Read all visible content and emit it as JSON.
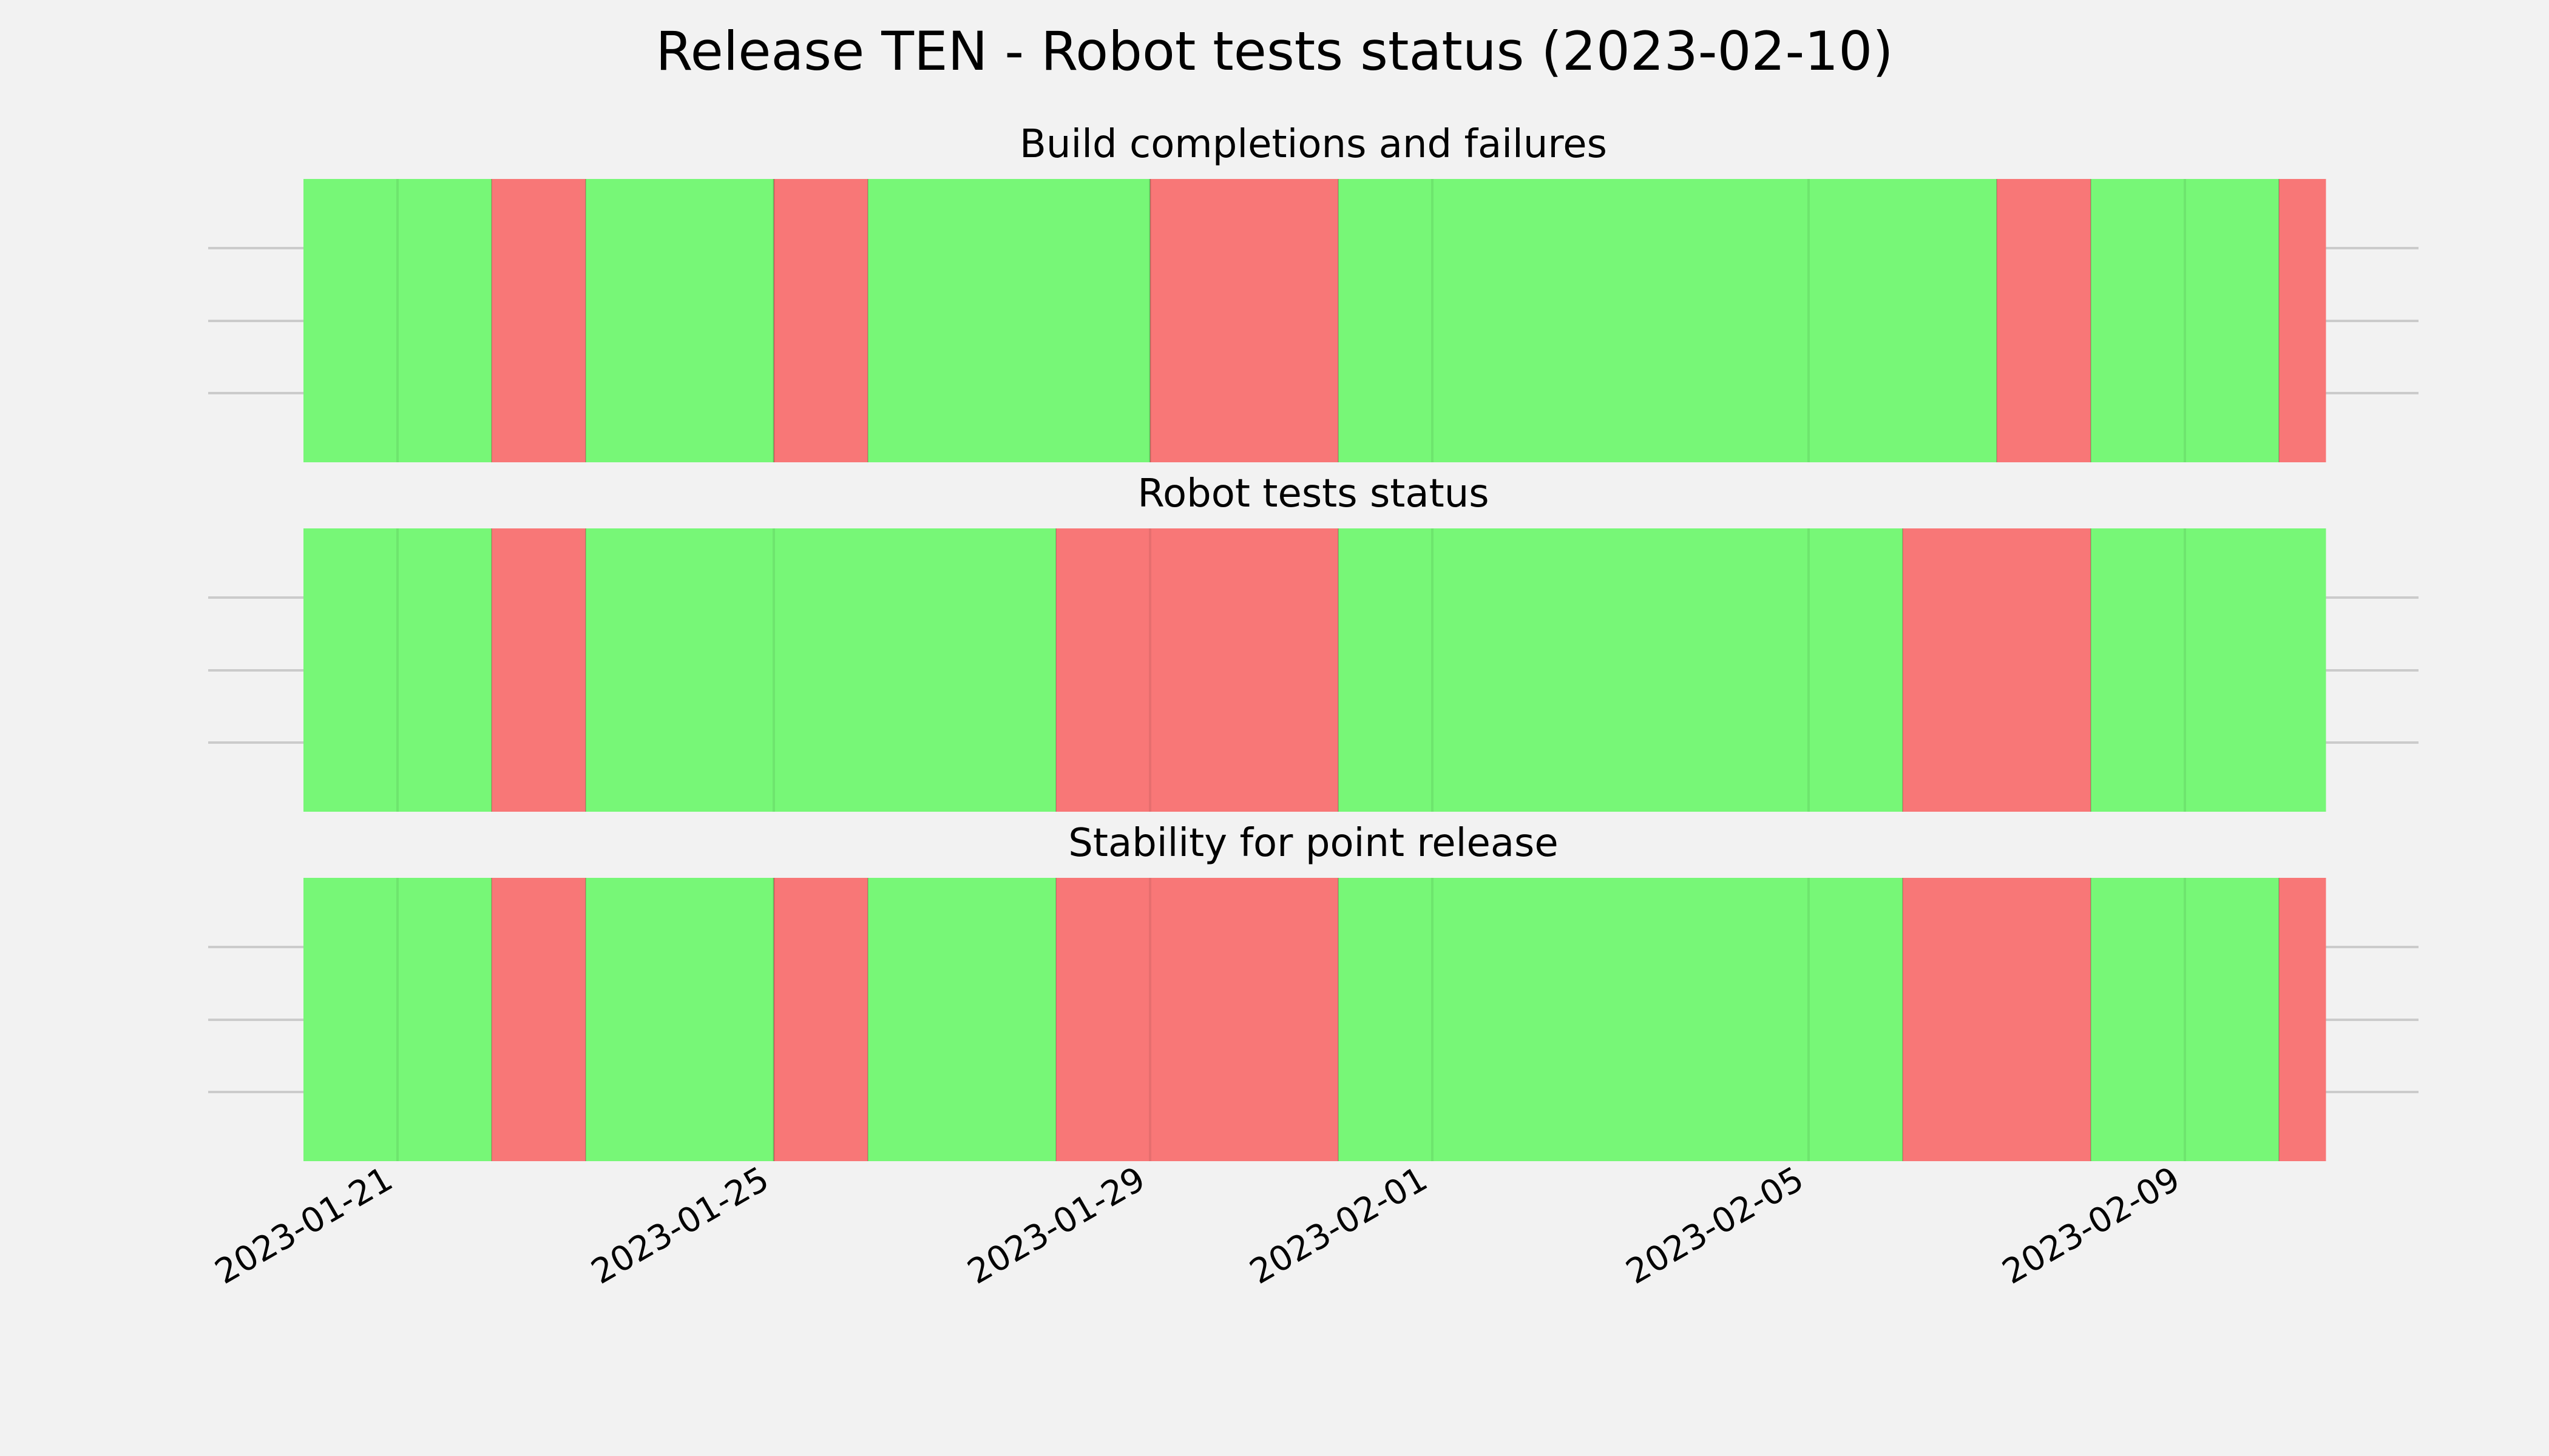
{
  "chart_data": {
    "type": "timeline",
    "title": "Release TEN - Robot tests status (2023-02-10)",
    "x_range": [
      "2023-01-20",
      "2023-02-10"
    ],
    "x_ticks": [
      "2023-01-21",
      "2023-01-25",
      "2023-01-29",
      "2023-02-01",
      "2023-02-05",
      "2023-02-09"
    ],
    "grid": true,
    "colors": {
      "pass": "#77f777",
      "fail": "#f87777",
      "background": "#f2f2f2"
    },
    "panels": [
      {
        "title": "Build completions and failures",
        "segments": [
          {
            "start": "2023-01-20",
            "end": "2023-01-22",
            "status": "pass"
          },
          {
            "start": "2023-01-22",
            "end": "2023-01-23",
            "status": "fail"
          },
          {
            "start": "2023-01-23",
            "end": "2023-01-25",
            "status": "pass"
          },
          {
            "start": "2023-01-25",
            "end": "2023-01-26",
            "status": "fail"
          },
          {
            "start": "2023-01-26",
            "end": "2023-01-29",
            "status": "pass"
          },
          {
            "start": "2023-01-29",
            "end": "2023-01-31",
            "status": "fail"
          },
          {
            "start": "2023-01-31",
            "end": "2023-02-07",
            "status": "pass"
          },
          {
            "start": "2023-02-07",
            "end": "2023-02-08",
            "status": "fail"
          },
          {
            "start": "2023-02-08",
            "end": "2023-02-10",
            "status": "pass"
          },
          {
            "start": "2023-02-10",
            "end": "2023-02-10T12:00",
            "status": "fail"
          }
        ]
      },
      {
        "title": "Robot tests status",
        "segments": [
          {
            "start": "2023-01-20",
            "end": "2023-01-22",
            "status": "pass"
          },
          {
            "start": "2023-01-22",
            "end": "2023-01-23",
            "status": "fail"
          },
          {
            "start": "2023-01-23",
            "end": "2023-01-28",
            "status": "pass"
          },
          {
            "start": "2023-01-28",
            "end": "2023-01-31",
            "status": "fail"
          },
          {
            "start": "2023-01-31",
            "end": "2023-02-06",
            "status": "pass"
          },
          {
            "start": "2023-02-06",
            "end": "2023-02-08",
            "status": "fail"
          },
          {
            "start": "2023-02-08",
            "end": "2023-02-10T12:00",
            "status": "pass"
          }
        ]
      },
      {
        "title": "Stability for point release",
        "segments": [
          {
            "start": "2023-01-20",
            "end": "2023-01-22",
            "status": "pass"
          },
          {
            "start": "2023-01-22",
            "end": "2023-01-23",
            "status": "fail"
          },
          {
            "start": "2023-01-23",
            "end": "2023-01-25",
            "status": "pass"
          },
          {
            "start": "2023-01-25",
            "end": "2023-01-26",
            "status": "fail"
          },
          {
            "start": "2023-01-26",
            "end": "2023-01-28",
            "status": "pass"
          },
          {
            "start": "2023-01-28",
            "end": "2023-01-31",
            "status": "fail"
          },
          {
            "start": "2023-01-31",
            "end": "2023-02-06",
            "status": "pass"
          },
          {
            "start": "2023-02-06",
            "end": "2023-02-08",
            "status": "fail"
          },
          {
            "start": "2023-02-08",
            "end": "2023-02-10",
            "status": "pass"
          },
          {
            "start": "2023-02-10",
            "end": "2023-02-10T12:00",
            "status": "fail"
          }
        ]
      }
    ]
  }
}
